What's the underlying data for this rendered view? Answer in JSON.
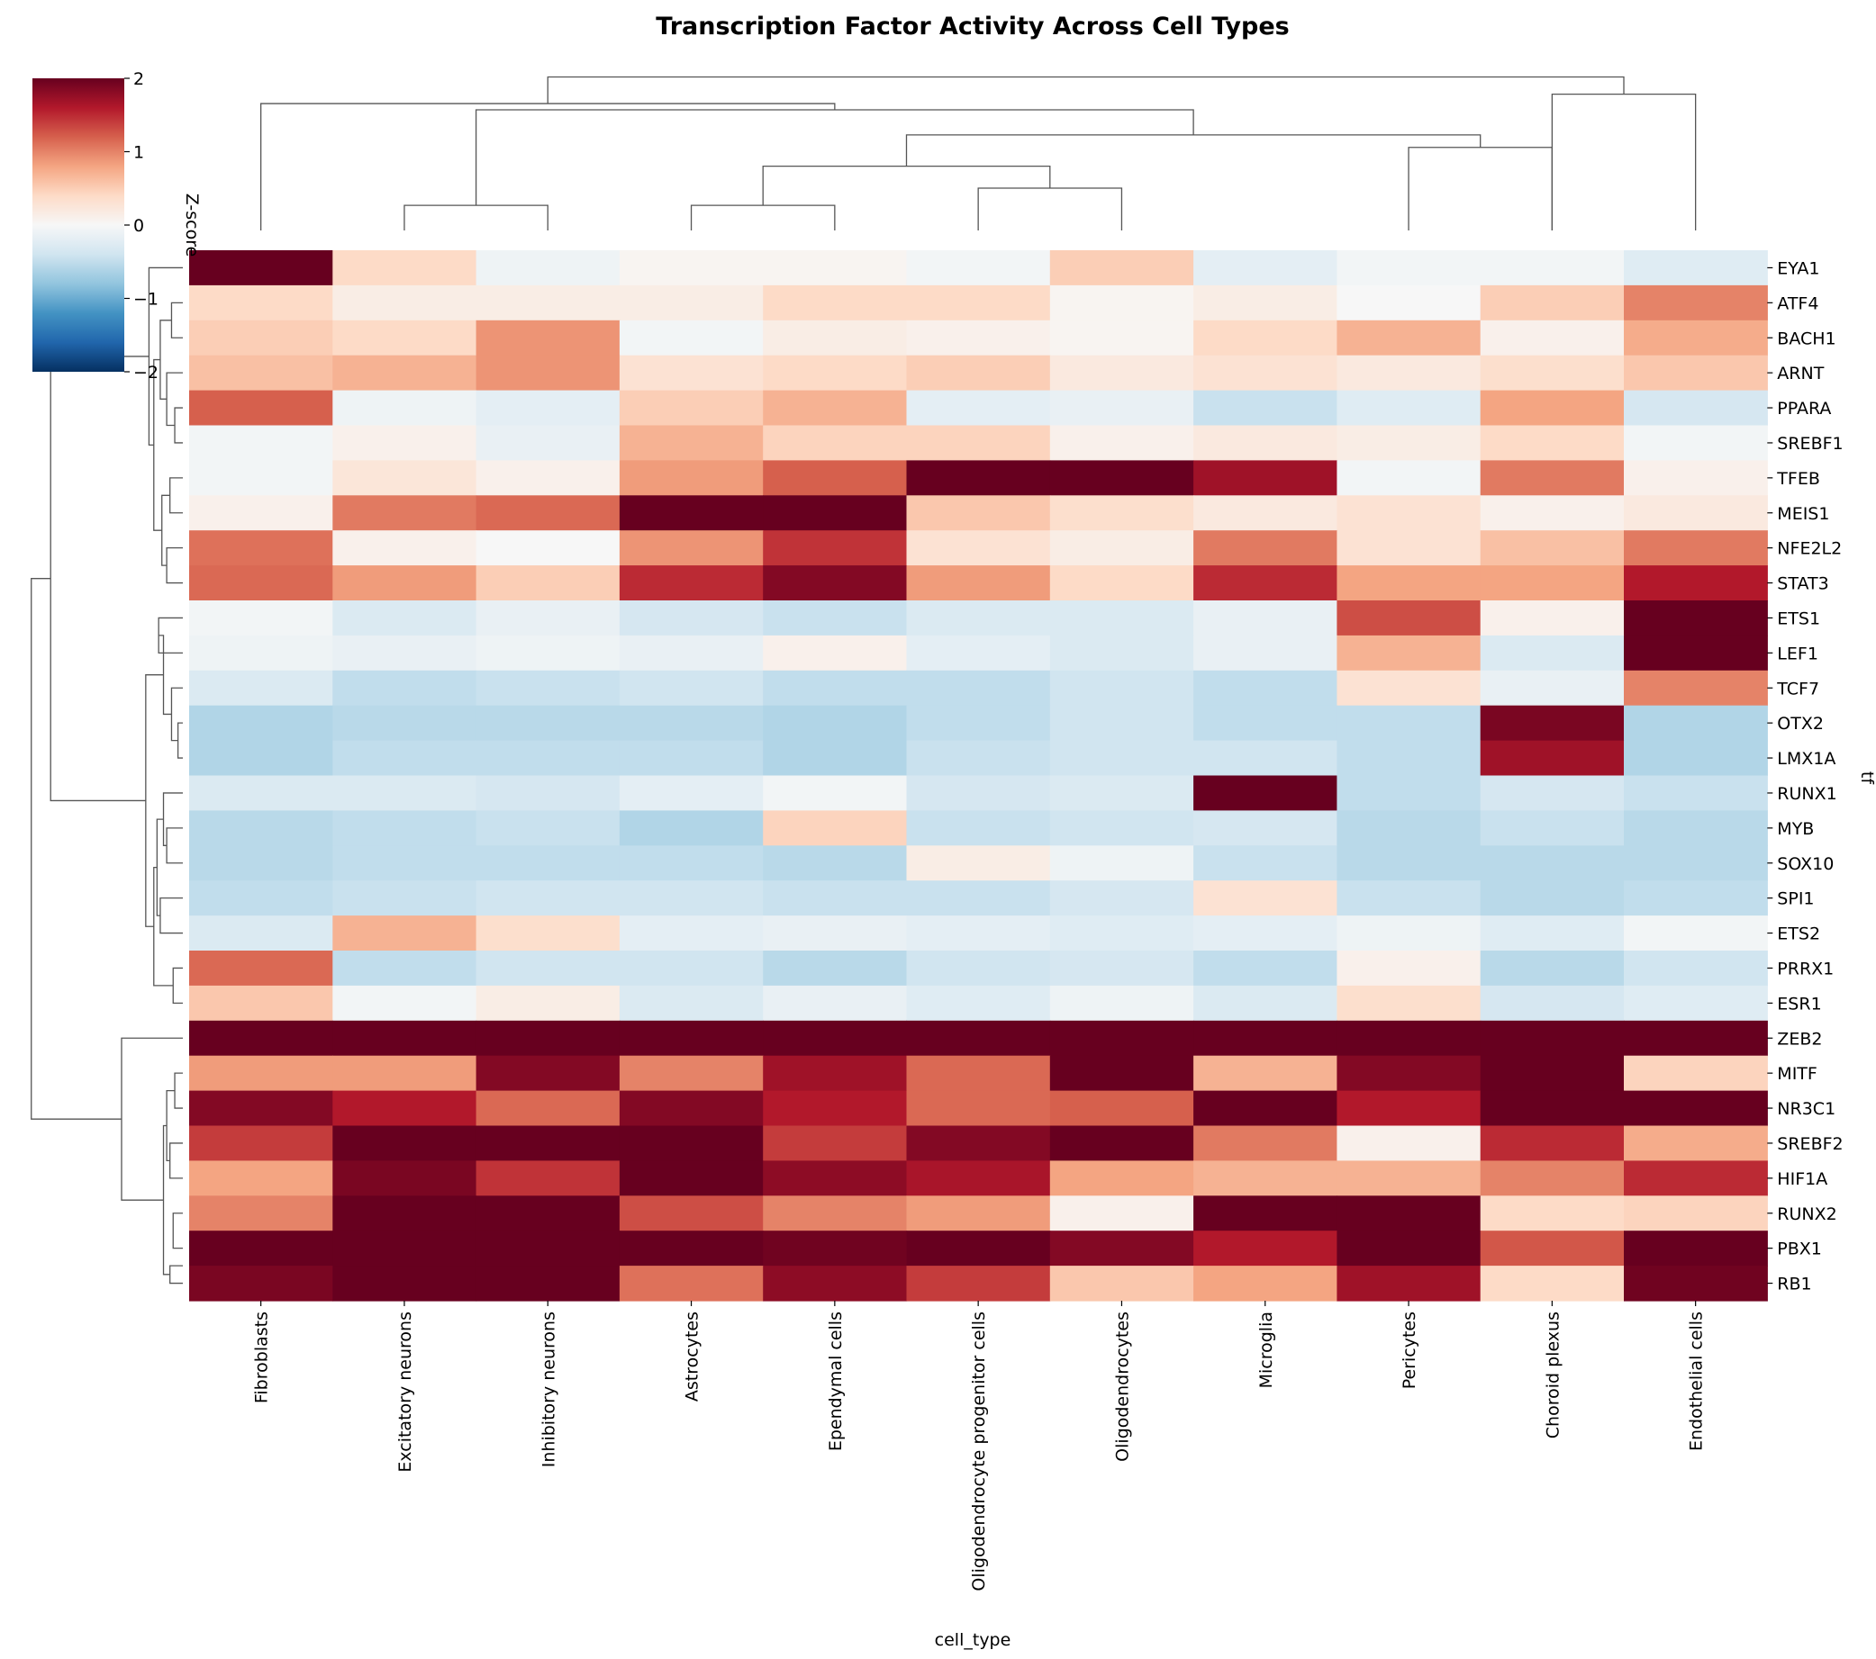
{
  "chart_data": {
    "type": "heatmap",
    "title": "Transcription Factor Activity Across Cell Types",
    "xlabel": "cell_type",
    "ylabel": "tf",
    "colorbar_label": "Z-score",
    "colorbar_ticks": [
      "2",
      "1",
      "0",
      "−1",
      "−2"
    ],
    "colormap": "RdBu_r",
    "vmin": -2,
    "vmax": 2,
    "columns": [
      "Fibroblasts",
      "Excitatory neurons",
      "Inhibitory neurons",
      "Astrocytes",
      "Ependymal cells",
      "Oligodendrocyte progenitor cells",
      "Oligodendrocytes",
      "Microglia",
      "Pericytes",
      "Choroid plexus",
      "Endothelial cells"
    ],
    "rows": [
      "EYA1",
      "ATF4",
      "BACH1",
      "ARNT",
      "PPARA",
      "SREBF1",
      "TFEB",
      "MEIS1",
      "NFE2L2",
      "STAT3",
      "ETS1",
      "LEF1",
      "TCF7",
      "OTX2",
      "LMX1A",
      "RUNX1",
      "MYB",
      "SOX10",
      "SPI1",
      "ETS2",
      "PRRX1",
      "ESR1",
      "ZEB2",
      "MITF",
      "NR3C1",
      "SREBF2",
      "HIF1A",
      "RUNX2",
      "PBX1",
      "RB1"
    ],
    "values": [
      [
        2.0,
        0.4,
        -0.1,
        0.05,
        0.05,
        -0.05,
        0.5,
        -0.2,
        -0.05,
        -0.05,
        -0.25
      ],
      [
        0.4,
        0.15,
        0.15,
        0.15,
        0.4,
        0.4,
        0.05,
        0.15,
        0.0,
        0.5,
        1.0
      ],
      [
        0.5,
        0.4,
        0.9,
        -0.05,
        0.15,
        0.1,
        0.05,
        0.4,
        0.7,
        0.1,
        0.75
      ],
      [
        0.6,
        0.7,
        0.9,
        0.3,
        0.4,
        0.5,
        0.2,
        0.3,
        0.2,
        0.35,
        0.55
      ],
      [
        1.2,
        -0.1,
        -0.2,
        0.5,
        0.7,
        -0.2,
        -0.15,
        -0.45,
        -0.25,
        0.8,
        -0.35
      ],
      [
        -0.05,
        0.1,
        -0.15,
        0.7,
        0.45,
        0.45,
        0.1,
        0.2,
        0.15,
        0.4,
        -0.05
      ],
      [
        -0.05,
        0.25,
        0.1,
        0.85,
        1.2,
        2.0,
        2.0,
        1.7,
        -0.05,
        1.05,
        0.1
      ],
      [
        0.1,
        1.05,
        1.15,
        2.0,
        2.0,
        0.55,
        0.35,
        0.2,
        0.3,
        0.1,
        0.2
      ],
      [
        1.1,
        0.1,
        0.0,
        0.9,
        1.45,
        0.3,
        0.15,
        1.05,
        0.3,
        0.6,
        1.05
      ],
      [
        1.15,
        0.85,
        0.5,
        1.5,
        1.85,
        0.85,
        0.4,
        1.5,
        0.8,
        0.8,
        1.6
      ],
      [
        -0.05,
        -0.3,
        -0.15,
        -0.35,
        -0.45,
        -0.3,
        -0.3,
        -0.15,
        1.3,
        0.1,
        2.0
      ],
      [
        -0.1,
        -0.15,
        -0.1,
        -0.15,
        0.1,
        -0.2,
        -0.3,
        -0.15,
        0.7,
        -0.3,
        2.0
      ],
      [
        -0.3,
        -0.5,
        -0.45,
        -0.4,
        -0.5,
        -0.5,
        -0.4,
        -0.5,
        0.3,
        -0.15,
        1.0
      ],
      [
        -0.6,
        -0.55,
        -0.55,
        -0.55,
        -0.6,
        -0.5,
        -0.4,
        -0.5,
        -0.5,
        1.9,
        -0.6
      ],
      [
        -0.6,
        -0.5,
        -0.5,
        -0.5,
        -0.6,
        -0.45,
        -0.4,
        -0.4,
        -0.5,
        1.7,
        -0.6
      ],
      [
        -0.3,
        -0.3,
        -0.35,
        -0.2,
        -0.05,
        -0.35,
        -0.3,
        2.0,
        -0.5,
        -0.35,
        -0.45
      ],
      [
        -0.55,
        -0.5,
        -0.45,
        -0.6,
        0.45,
        -0.45,
        -0.4,
        -0.35,
        -0.55,
        -0.45,
        -0.55
      ],
      [
        -0.55,
        -0.5,
        -0.5,
        -0.5,
        -0.55,
        0.15,
        -0.1,
        -0.45,
        -0.55,
        -0.55,
        -0.55
      ],
      [
        -0.5,
        -0.45,
        -0.4,
        -0.4,
        -0.45,
        -0.45,
        -0.35,
        0.3,
        -0.45,
        -0.55,
        -0.5
      ],
      [
        -0.3,
        0.7,
        0.35,
        -0.2,
        -0.15,
        -0.2,
        -0.25,
        -0.2,
        -0.1,
        -0.25,
        -0.05
      ],
      [
        1.15,
        -0.5,
        -0.4,
        -0.4,
        -0.55,
        -0.4,
        -0.35,
        -0.5,
        0.1,
        -0.55,
        -0.4
      ],
      [
        0.55,
        -0.05,
        0.15,
        -0.3,
        -0.15,
        -0.25,
        -0.1,
        -0.3,
        0.35,
        -0.35,
        -0.25
      ],
      [
        2.0,
        2.0,
        2.0,
        2.0,
        2.0,
        2.0,
        2.0,
        2.0,
        2.0,
        2.0,
        2.0
      ],
      [
        0.85,
        0.85,
        1.85,
        1.0,
        1.7,
        1.15,
        2.0,
        0.7,
        1.85,
        2.0,
        0.45
      ],
      [
        1.85,
        1.6,
        1.15,
        1.85,
        1.6,
        1.15,
        1.2,
        2.0,
        1.6,
        2.0,
        2.0
      ],
      [
        1.4,
        2.0,
        2.0,
        2.0,
        1.4,
        1.85,
        2.0,
        1.05,
        0.1,
        1.5,
        0.75
      ],
      [
        0.8,
        1.9,
        1.45,
        2.0,
        1.8,
        1.65,
        0.8,
        0.7,
        0.7,
        1.0,
        1.5
      ],
      [
        1.0,
        2.0,
        2.0,
        1.3,
        1.0,
        0.85,
        0.1,
        2.0,
        2.0,
        0.4,
        0.45
      ],
      [
        2.0,
        2.0,
        2.0,
        2.0,
        1.95,
        2.0,
        1.85,
        1.6,
        2.0,
        1.25,
        2.0
      ],
      [
        1.9,
        2.0,
        2.0,
        1.1,
        1.8,
        1.4,
        0.55,
        0.8,
        1.7,
        0.4,
        1.95
      ]
    ]
  }
}
